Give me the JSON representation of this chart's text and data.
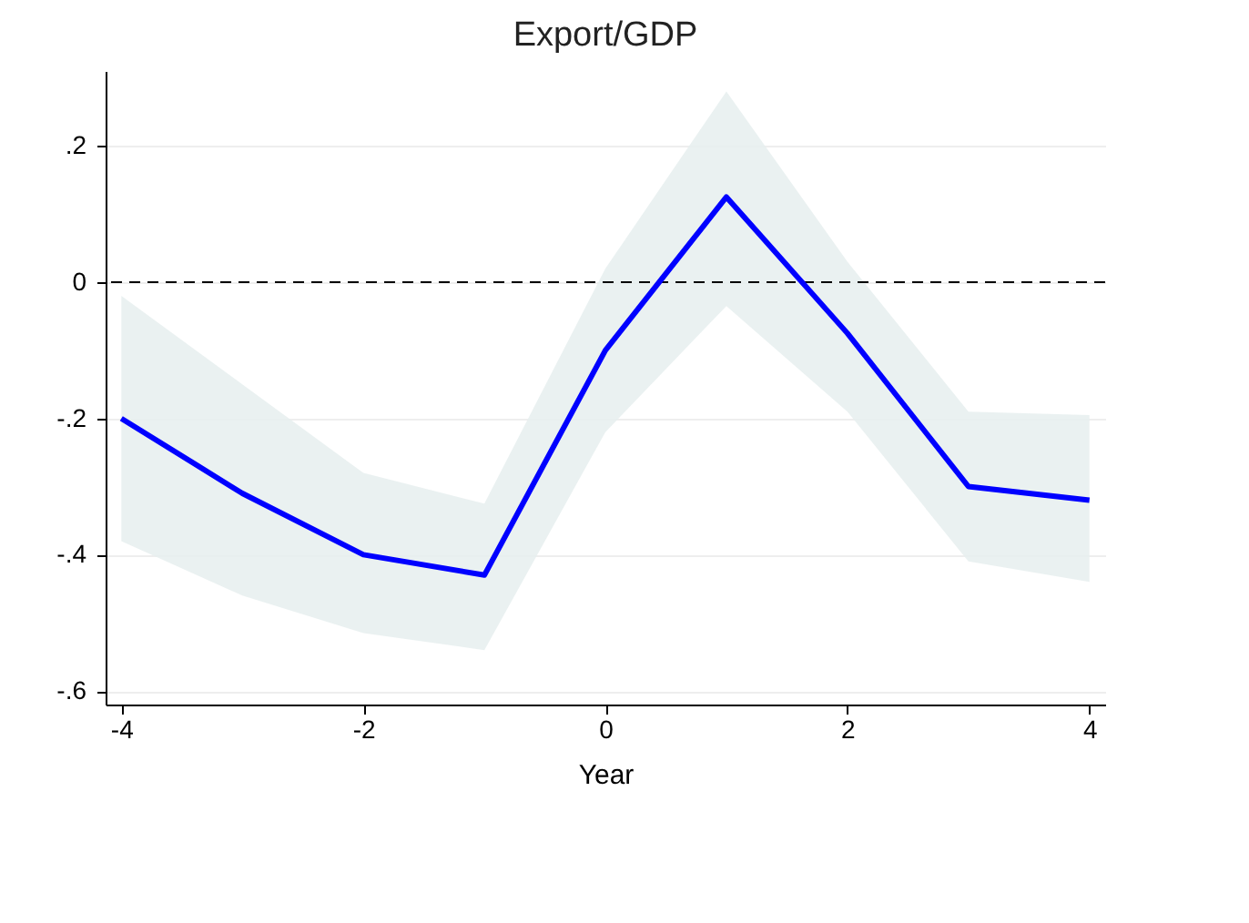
{
  "chart_data": {
    "type": "line",
    "title": "Export/GDP",
    "xlabel": "Year",
    "x": [
      -4,
      -3,
      -2,
      -1,
      0,
      1,
      2,
      3,
      4
    ],
    "series": [
      {
        "color": "#0000ff",
        "values": [
          -0.2,
          -0.31,
          -0.4,
          -0.43,
          -0.1,
          0.125,
          -0.075,
          -0.3,
          -0.32
        ],
        "lower": [
          -0.38,
          -0.46,
          -0.515,
          -0.54,
          -0.22,
          -0.035,
          -0.19,
          -0.41,
          -0.44
        ],
        "upper": [
          -0.02,
          -0.15,
          -0.28,
          -0.325,
          0.02,
          0.28,
          0.03,
          -0.19,
          -0.195
        ]
      }
    ],
    "xlim": [
      -4.13,
      4.13
    ],
    "xticks": [
      -4,
      -2,
      0,
      2,
      4
    ],
    "ylim": [
      -0.62,
      0.31
    ],
    "yticks": [
      {
        "value": -0.6,
        "label": "-.6"
      },
      {
        "value": -0.4,
        "label": "-.4"
      },
      {
        "value": -0.2,
        "label": "-.2"
      },
      0,
      {
        "value": 0.2,
        "label": ".2"
      }
    ],
    "grid": "y",
    "line_style": "solid",
    "ref_lines": [
      {
        "axis": "y",
        "value": 0,
        "color": "#000000",
        "line_style": "dashed"
      }
    ]
  }
}
